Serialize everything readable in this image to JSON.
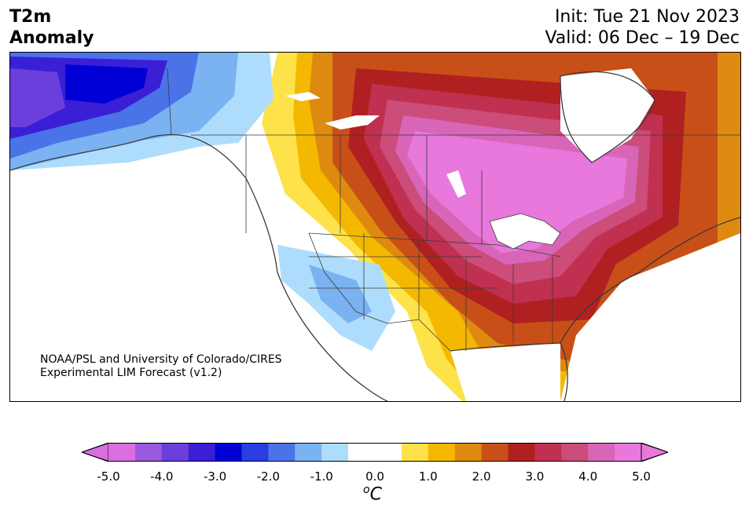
{
  "header": {
    "variable": "T2m",
    "field": "Anomaly",
    "init": "Init: Tue 21 Nov 2023",
    "valid": "Valid: 06 Dec – 19 Dec"
  },
  "credit": {
    "line1": "NOAA/PSL and University of Colorado/CIRES",
    "line2": "Experimental LIM Forecast (v1.2)"
  },
  "colorbar": {
    "unit": "oC",
    "unit_base": "C",
    "unit_sup": "o",
    "ticks": [
      "-5.0",
      "-4.0",
      "-3.0",
      "-2.0",
      "-1.0",
      "0.0",
      "1.0",
      "2.0",
      "3.0",
      "4.0",
      "5.0"
    ],
    "colors": [
      "#d86ee0",
      "#9b59e0",
      "#6a3fdc",
      "#3a1fd6",
      "#0000d6",
      "#2a3ee0",
      "#4b73e8",
      "#7ab2f2",
      "#aedcfc",
      "#ffffff",
      "#ffffff",
      "#fde24a",
      "#f4b800",
      "#de8a10",
      "#c85018",
      "#b02020",
      "#c03050",
      "#cc4c7a",
      "#d865b8",
      "#e878dc"
    ],
    "extend_low": "#d86ee0",
    "extend_high": "#e878dc"
  },
  "map": {
    "region": "North America",
    "border_color": "#3a3a3a"
  }
}
